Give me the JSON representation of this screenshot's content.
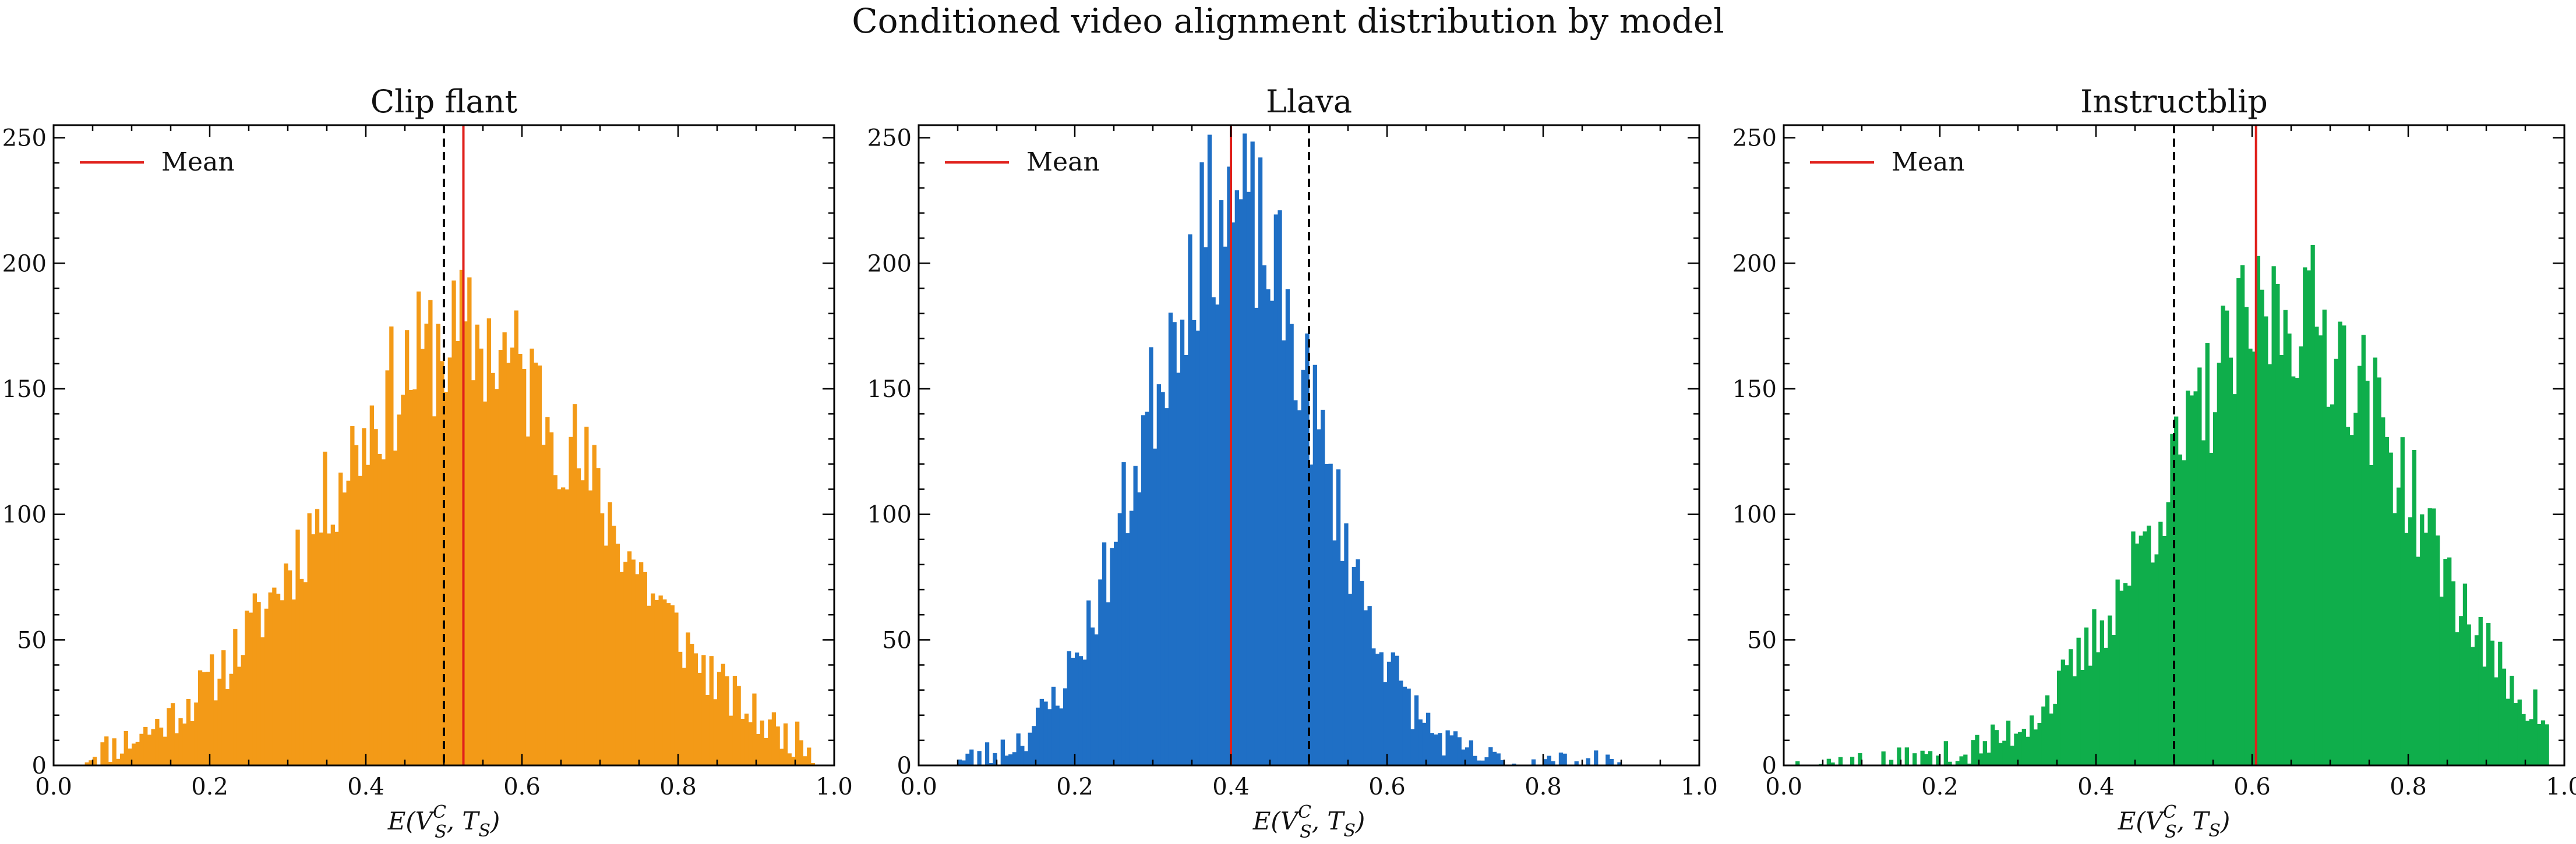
{
  "figure": {
    "title": "Conditioned video alignment distribution by model"
  },
  "chart_data": [
    {
      "type": "bar",
      "subtype": "histogram",
      "title": "Clip flant",
      "xlabel": "E(V_S^C, T_S)",
      "ylabel": "",
      "xlim": [
        0,
        1.0
      ],
      "ylim": [
        0,
        255
      ],
      "xticks": [
        "0.0",
        "0.2",
        "0.4",
        "0.6",
        "0.8",
        "1.0"
      ],
      "yticks": [
        "0",
        "50",
        "100",
        "150",
        "200",
        "250"
      ],
      "color": "#f39a17",
      "mean": 0.525,
      "reference_line": 0.5,
      "legend": {
        "label": "Mean",
        "color": "#e0201b",
        "placement": "top-left"
      },
      "distribution": {
        "center": 0.525,
        "spread": 0.18,
        "peak": 170,
        "low": 0.04,
        "high": 0.975,
        "seed": 11
      },
      "bins": 200
    },
    {
      "type": "bar",
      "subtype": "histogram",
      "title": "Llava",
      "xlabel": "E(V_S^C, T_S)",
      "ylabel": "",
      "xlim": [
        0,
        1.0
      ],
      "ylim": [
        0,
        255
      ],
      "xticks": [
        "0.0",
        "0.2",
        "0.4",
        "0.6",
        "0.8",
        "1.0"
      ],
      "yticks": [
        "0",
        "50",
        "100",
        "150",
        "200",
        "250"
      ],
      "color": "#1f6fc5",
      "mean": 0.4,
      "reference_line": 0.5,
      "legend": {
        "label": "Mean",
        "color": "#e0201b",
        "placement": "top-left"
      },
      "distribution": {
        "center": 0.4,
        "spread": 0.11,
        "peak": 222,
        "low": 0.04,
        "high": 0.9,
        "seed": 23
      },
      "bins": 200
    },
    {
      "type": "bar",
      "subtype": "histogram",
      "title": "Instructblip",
      "xlabel": "E(V_S^C, T_S)",
      "ylabel": "",
      "xlim": [
        0,
        1.0
      ],
      "ylim": [
        0,
        255
      ],
      "xticks": [
        "0.0",
        "0.2",
        "0.4",
        "0.6",
        "0.8",
        "1.0"
      ],
      "yticks": [
        "0",
        "50",
        "100",
        "150",
        "200",
        "250"
      ],
      "color": "#0fae4b",
      "mean": 0.605,
      "reference_line": 0.5,
      "legend": {
        "label": "Mean",
        "color": "#e0201b",
        "placement": "top-left"
      },
      "distribution": {
        "center": 0.645,
        "spread": 0.155,
        "peak": 182,
        "low": 0.01,
        "high": 0.98,
        "seed": 37
      },
      "bins": 200
    }
  ]
}
